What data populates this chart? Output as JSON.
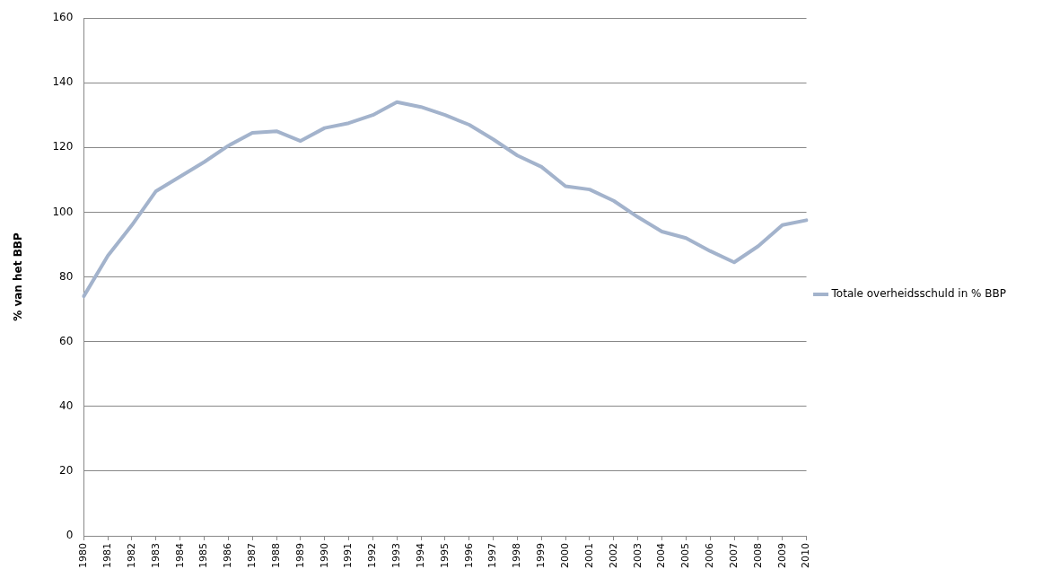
{
  "chart_data": {
    "type": "line",
    "ylabel": "% van het BBP",
    "categories": [
      "1980",
      "1981",
      "1982",
      "1983",
      "1984",
      "1985",
      "1986",
      "1987",
      "1988",
      "1989",
      "1990",
      "1991",
      "1992",
      "1993",
      "1994",
      "1995",
      "1996",
      "1997",
      "1998",
      "1999",
      "2000",
      "2001",
      "2002",
      "2003",
      "2004",
      "2005",
      "2006",
      "2007",
      "2008",
      "2009",
      "2010"
    ],
    "series": [
      {
        "name": "Totale overheidsschuld in % BBP",
        "color": "#a3b3cc",
        "values": [
          74,
          86.5,
          96,
          106.5,
          111,
          115.5,
          120.5,
          124.5,
          125,
          122,
          126,
          127.5,
          130,
          134,
          132.5,
          130,
          127,
          122.5,
          117.5,
          114,
          108,
          107,
          103.5,
          98.5,
          94,
          92,
          88,
          84.5,
          89.5,
          96,
          97.5
        ]
      }
    ],
    "ylim": [
      0,
      160
    ],
    "yticks": [
      0,
      20,
      40,
      60,
      80,
      100,
      120,
      140,
      160
    ],
    "grid": "y",
    "legend": "right",
    "marker": "none",
    "line_style": "solid"
  }
}
